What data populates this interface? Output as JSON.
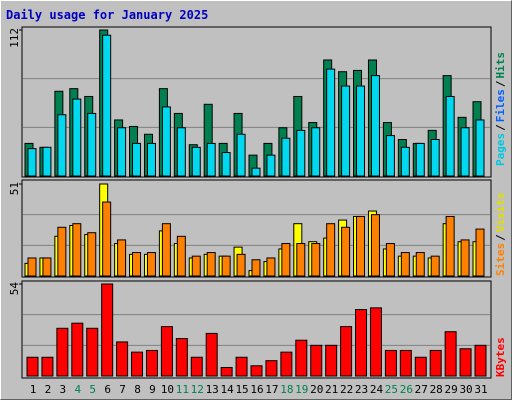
{
  "chart_data": [
    {
      "type": "bar",
      "title": "Daily usage for January 2025",
      "ylim": [
        0,
        112
      ],
      "yticks": [
        112
      ],
      "series": [
        {
          "color": "#008050",
          "values": [
            25,
            22,
            65,
            67,
            61,
            112,
            43,
            38,
            32,
            67,
            48,
            24,
            55,
            25,
            48,
            16,
            25,
            37,
            61,
            41,
            89,
            80,
            81,
            89,
            41,
            28,
            25,
            35,
            77,
            45,
            57
          ]
        },
        {
          "color": "#00d8f0",
          "values": [
            21,
            22,
            47,
            59,
            48,
            108,
            37,
            25,
            25,
            53,
            37,
            22,
            25,
            18,
            32,
            6,
            16,
            29,
            35,
            37,
            82,
            69,
            69,
            77,
            31,
            22,
            25,
            28,
            61,
            37,
            43
          ]
        }
      ],
      "legend": [
        {
          "label": "Pages",
          "color": "#00c8e0"
        },
        {
          "label": "/",
          "color": "#000000"
        },
        {
          "label": "Files",
          "color": "#0060ff"
        },
        {
          "label": "/",
          "color": "#000000"
        },
        {
          "label": "Hits",
          "color": "#008050"
        }
      ]
    },
    {
      "type": "bar",
      "ylim": [
        0,
        51
      ],
      "yticks": [
        51
      ],
      "series": [
        {
          "color": "#ffff00",
          "values": [
            7,
            10,
            22,
            28,
            23,
            51,
            18,
            12,
            12,
            25,
            18,
            10,
            12,
            11,
            16,
            3,
            8,
            15,
            29,
            19,
            21,
            31,
            33,
            36,
            15,
            11,
            11,
            10,
            29,
            19,
            19
          ]
        },
        {
          "color": "#ff8000",
          "values": [
            10,
            10,
            27,
            29,
            24,
            41,
            20,
            13,
            13,
            29,
            22,
            11,
            13,
            11,
            12,
            9,
            10,
            18,
            18,
            18,
            29,
            27,
            33,
            34,
            18,
            13,
            13,
            11,
            33,
            20,
            26
          ]
        }
      ],
      "legend": [
        {
          "label": "Sites",
          "color": "#ff8000"
        },
        {
          "label": "/",
          "color": "#000000"
        },
        {
          "label": "Visits",
          "color": "#e0e000"
        }
      ]
    },
    {
      "type": "bar",
      "ylim": [
        0,
        54
      ],
      "yticks": [
        54
      ],
      "categories": [
        "1",
        "2",
        "3",
        "4",
        "5",
        "6",
        "7",
        "8",
        "9",
        "10",
        "11",
        "12",
        "13",
        "14",
        "15",
        "16",
        "17",
        "18",
        "19",
        "20",
        "21",
        "22",
        "23",
        "24",
        "25",
        "26",
        "27",
        "28",
        "29",
        "30",
        "31"
      ],
      "category_colors": [
        "#000000",
        "#000000",
        "#000000",
        "#008050",
        "#008050",
        "#000000",
        "#000000",
        "#000000",
        "#000000",
        "#000000",
        "#008050",
        "#008050",
        "#000000",
        "#000000",
        "#000000",
        "#000000",
        "#000000",
        "#008050",
        "#008050",
        "#000000",
        "#000000",
        "#000000",
        "#000000",
        "#000000",
        "#008050",
        "#008050",
        "#000000",
        "#000000",
        "#000000",
        "#000000",
        "#000000"
      ],
      "series": [
        {
          "color": "#ff0000",
          "values": [
            11,
            11,
            28,
            31,
            28,
            54,
            20,
            14,
            15,
            29,
            22,
            11,
            25,
            5,
            11,
            6,
            9,
            14,
            21,
            18,
            18,
            29,
            39,
            40,
            15,
            15,
            11,
            15,
            26,
            16,
            18
          ]
        }
      ],
      "legend": [
        {
          "label": "KBytes",
          "color": "#ff0000"
        }
      ]
    }
  ]
}
